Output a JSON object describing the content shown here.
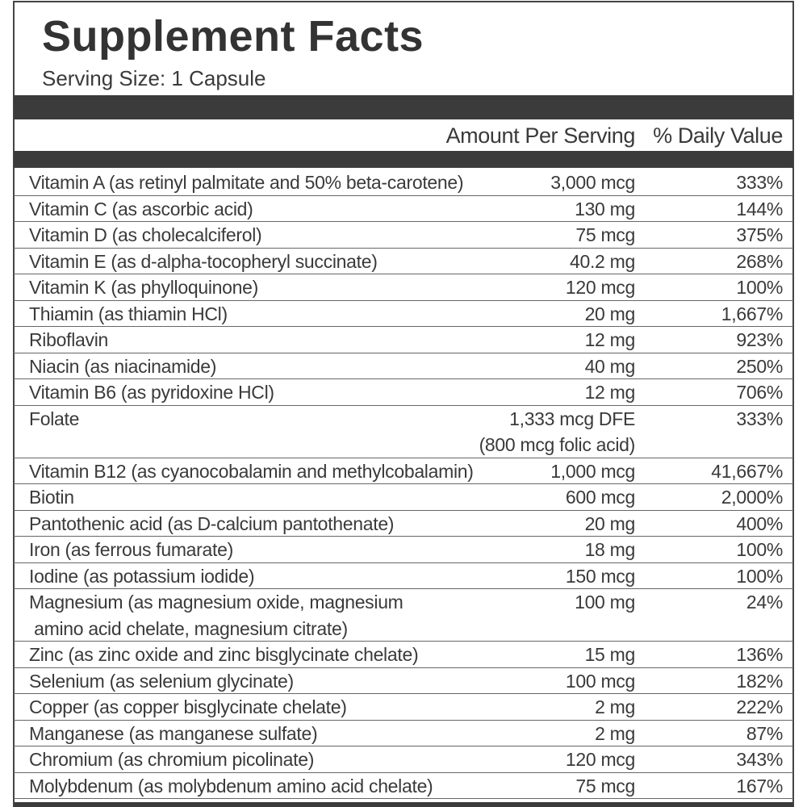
{
  "header": {
    "title": "Supplement Facts",
    "serving_size": "Serving Size: 1 Capsule"
  },
  "table": {
    "columns": [
      "Amount Per Serving",
      "% Daily Value"
    ],
    "rows": [
      [
        "Vitamin A (as retinyl palmitate and 50% beta-carotene)",
        "3,000 mcg",
        "333%"
      ],
      [
        "Vitamin C (as ascorbic acid)",
        "130 mg",
        "144%"
      ],
      [
        "Vitamin D (as cholecalciferol)",
        "75 mcg",
        "375%"
      ],
      [
        "Vitamin E (as d-alpha-tocopheryl succinate)",
        "40.2 mg",
        "268%"
      ],
      [
        "Vitamin K (as phylloquinone)",
        "120 mcg",
        "100%"
      ],
      [
        "Thiamin (as thiamin HCl)",
        "20 mg",
        "1,667%"
      ],
      [
        "Riboflavin",
        "12 mg",
        "923%"
      ],
      [
        "Niacin (as niacinamide)",
        "40 mg",
        "250%"
      ],
      [
        "Vitamin B6 (as pyridoxine HCl)",
        "12 mg",
        "706%"
      ],
      [
        "Folate",
        "1,333 mcg DFE\n(800 mcg folic acid)",
        "333%"
      ],
      [
        "Vitamin B12 (as cyanocobalamin and methylcobalamin)",
        "1,000 mcg",
        "41,667%"
      ],
      [
        "Biotin",
        "600 mcg",
        "2,000%"
      ],
      [
        "Pantothenic acid (as D-calcium pantothenate)",
        "20 mg",
        "400%"
      ],
      [
        "Iron (as ferrous fumarate)",
        "18 mg",
        "100%"
      ],
      [
        "Iodine (as potassium iodide)",
        "150 mcg",
        "100%"
      ],
      [
        "Magnesium (as magnesium oxide, magnesium\n amino acid chelate, magnesium citrate)",
        "100 mg",
        "24%"
      ],
      [
        "Zinc (as zinc oxide and zinc bisglycinate chelate)",
        "15 mg",
        "136%"
      ],
      [
        "Selenium (as selenium glycinate)",
        "100 mcg",
        "182%"
      ],
      [
        "Copper (as copper bisglycinate chelate)",
        "2 mg",
        "222%"
      ],
      [
        "Manganese (as manganese sulfate)",
        "2 mg",
        "87%"
      ],
      [
        "Chromium (as chromium picolinate)",
        "120 mcg",
        "343%"
      ],
      [
        "Molybdenum (as molybdenum amino acid chelate)",
        "75 mcg",
        "167%"
      ]
    ]
  }
}
